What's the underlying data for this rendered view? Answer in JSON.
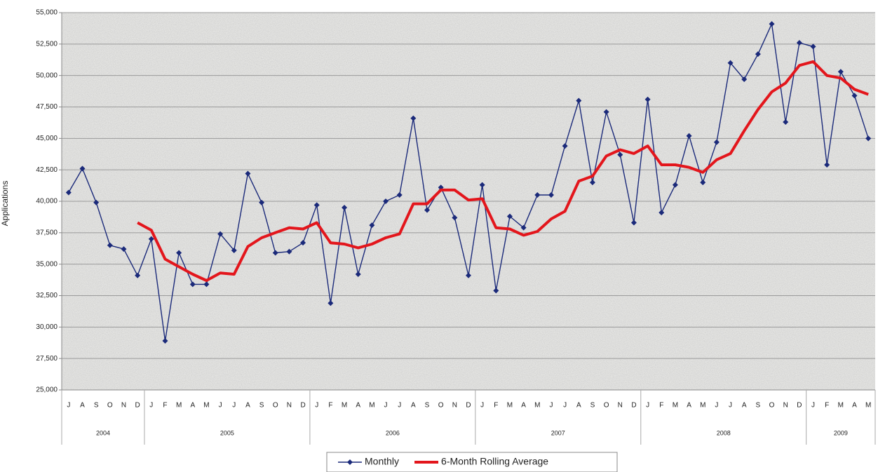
{
  "chart_data": {
    "type": "line",
    "y_label": "Applications",
    "category_groups": [
      {
        "label": "2004",
        "categories": [
          "J",
          "A",
          "S",
          "O",
          "N",
          "D"
        ]
      },
      {
        "label": "2005",
        "categories": [
          "J",
          "F",
          "M",
          "A",
          "M",
          "J",
          "J",
          "A",
          "S",
          "O",
          "N",
          "D"
        ]
      },
      {
        "label": "2006",
        "categories": [
          "J",
          "F",
          "M",
          "A",
          "M",
          "J",
          "J",
          "A",
          "S",
          "O",
          "N",
          "D"
        ]
      },
      {
        "label": "2007",
        "categories": [
          "J",
          "F",
          "M",
          "A",
          "M",
          "J",
          "J",
          "A",
          "S",
          "O",
          "N",
          "D"
        ]
      },
      {
        "label": "2008",
        "categories": [
          "J",
          "F",
          "M",
          "A",
          "M",
          "J",
          "J",
          "A",
          "S",
          "O",
          "N",
          "D"
        ]
      },
      {
        "label": "2009",
        "categories": [
          "J",
          "F",
          "M",
          "A",
          "M"
        ]
      }
    ],
    "series": [
      {
        "name": "Monthly",
        "color": "#1b2a7a",
        "marker": "diamond",
        "values": [
          40700,
          42600,
          39900,
          36500,
          36200,
          34100,
          37000,
          28900,
          35900,
          33400,
          33400,
          37400,
          36100,
          42200,
          39900,
          35900,
          36000,
          36700,
          39700,
          31900,
          39500,
          34200,
          38100,
          40000,
          40500,
          46600,
          39300,
          41100,
          38700,
          34100,
          41300,
          32900,
          38800,
          37900,
          40500,
          40500,
          44400,
          48000,
          41500,
          47100,
          43700,
          38300,
          48100,
          39100,
          41300,
          45200,
          41500,
          44700,
          51000,
          49700,
          51700,
          54100,
          46300,
          52600,
          52300,
          42900,
          50300,
          48400,
          45000
        ]
      },
      {
        "name": "6-Month Rolling Average",
        "color": "#e3161c",
        "values": [
          null,
          null,
          null,
          null,
          null,
          38300,
          37700,
          35400,
          34800,
          34200,
          33700,
          34300,
          34200,
          36400,
          37100,
          37500,
          37900,
          37800,
          38300,
          36700,
          36600,
          36300,
          36600,
          37100,
          37400,
          39800,
          39800,
          40900,
          40900,
          40100,
          40200,
          37900,
          37800,
          37300,
          37600,
          38600,
          39200,
          41600,
          42000,
          43600,
          44100,
          43800,
          44400,
          42900,
          42900,
          42700,
          42300,
          43300,
          43800,
          45600,
          47300,
          48700,
          49400,
          50800,
          51100,
          50000,
          49800,
          48900,
          48500
        ]
      }
    ],
    "ylim": [
      25000,
      55000
    ],
    "yticks": [
      {
        "value": 25000,
        "label": "25,000"
      },
      {
        "value": 27500,
        "label": "27,500"
      },
      {
        "value": 30000,
        "label": "30,000"
      },
      {
        "value": 32500,
        "label": "32,500"
      },
      {
        "value": 35000,
        "label": "35,000"
      },
      {
        "value": 37500,
        "label": "37,500"
      },
      {
        "value": 40000,
        "label": "40,000"
      },
      {
        "value": 42500,
        "label": "42,500"
      },
      {
        "value": 45000,
        "label": "45,000"
      },
      {
        "value": 47500,
        "label": "47,500"
      },
      {
        "value": 50000,
        "label": "50,000"
      },
      {
        "value": 52500,
        "label": "52,500"
      },
      {
        "value": 55000,
        "label": "55,000"
      }
    ],
    "grid": true,
    "legend": "bottom"
  }
}
